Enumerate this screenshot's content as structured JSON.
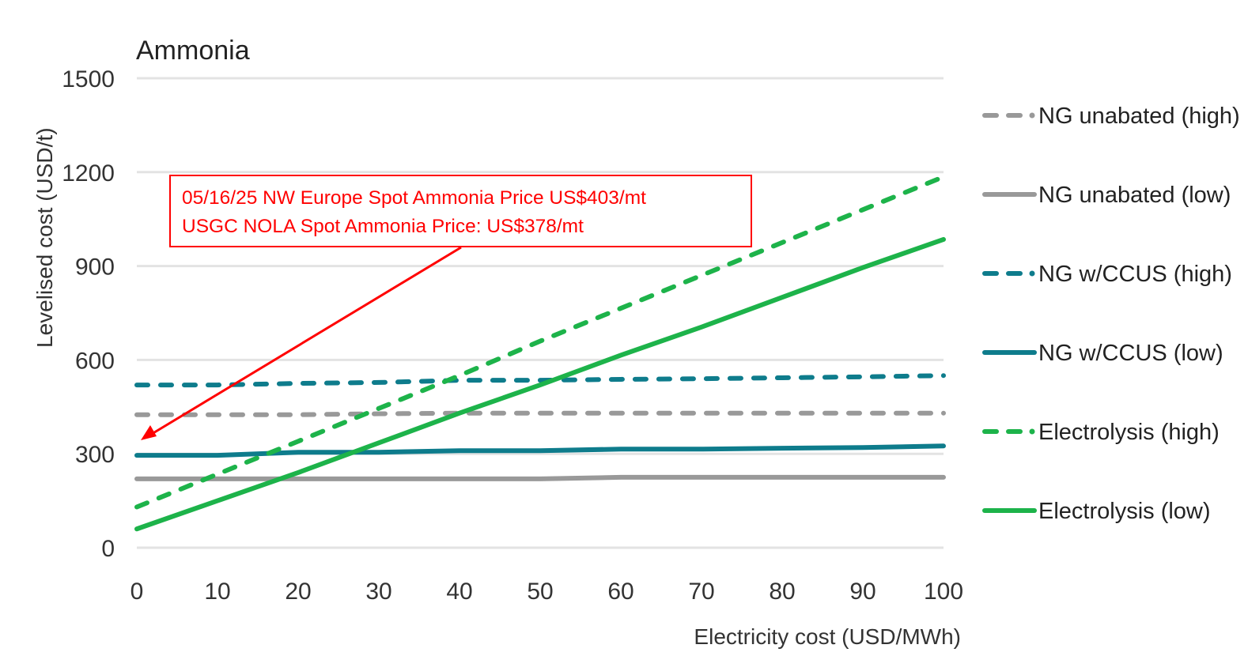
{
  "chart_data": {
    "type": "line",
    "title": "Ammonia",
    "xlabel": "Electricity cost (USD/MWh)",
    "ylabel": "Levelised cost (USD/t)",
    "xlim": [
      0,
      100
    ],
    "ylim": [
      0,
      1500
    ],
    "x_ticks": [
      0,
      10,
      20,
      30,
      40,
      50,
      60,
      70,
      80,
      90,
      100
    ],
    "y_ticks": [
      0,
      300,
      600,
      900,
      1200,
      1500
    ],
    "grid": "horizontal",
    "legend_position": "right",
    "x": [
      0,
      10,
      20,
      30,
      40,
      50,
      60,
      70,
      80,
      90,
      100
    ],
    "series": [
      {
        "name": "NG unabated (high)",
        "color": "#999999",
        "style": "dashed",
        "values": [
          425,
          425,
          425,
          428,
          430,
          430,
          430,
          430,
          430,
          430,
          430
        ]
      },
      {
        "name": "NG unabated (low)",
        "color": "#999999",
        "style": "solid",
        "values": [
          220,
          220,
          220,
          220,
          220,
          220,
          225,
          225,
          225,
          225,
          225
        ]
      },
      {
        "name": "NG w/CCUS (high)",
        "color": "#0e7c8c",
        "style": "dashed",
        "values": [
          520,
          520,
          525,
          528,
          535,
          535,
          538,
          540,
          543,
          546,
          550
        ]
      },
      {
        "name": "NG w/CCUS (low)",
        "color": "#0e7c8c",
        "style": "solid",
        "values": [
          295,
          295,
          305,
          305,
          310,
          310,
          315,
          315,
          318,
          320,
          325
        ]
      },
      {
        "name": "Electrolysis (high)",
        "color": "#1db34a",
        "style": "dashed",
        "values": [
          130,
          235,
          340,
          445,
          550,
          660,
          765,
          870,
          975,
          1080,
          1185
        ]
      },
      {
        "name": "Electrolysis (low)",
        "color": "#1db34a",
        "style": "solid",
        "values": [
          60,
          150,
          240,
          335,
          430,
          520,
          615,
          705,
          800,
          895,
          985
        ]
      }
    ],
    "annotation": {
      "lines": [
        "05/16/25 NW Europe Spot Ammonia Price US$403/mt",
        "USGC NOLA Spot Ammonia Price: US$378/mt"
      ],
      "color": "#ff0000",
      "arrow_target": {
        "x": 0,
        "y": 340
      }
    }
  }
}
